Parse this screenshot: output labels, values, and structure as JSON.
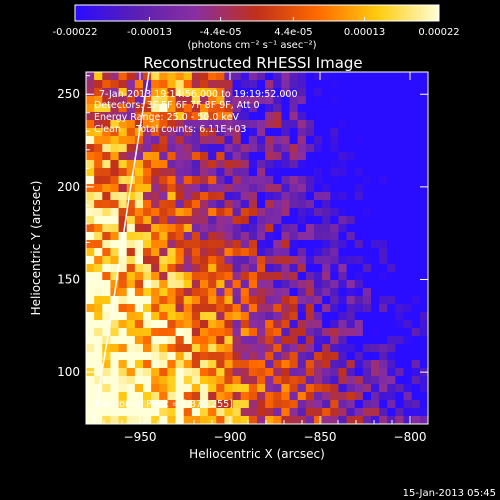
{
  "colorbar": {
    "tick_labels": [
      "-0.00022",
      "-0.00013",
      "-4.4e-05",
      "4.4e-05",
      "0.00013",
      "0.00022"
    ],
    "tick_values": [
      -0.00022,
      -0.00013,
      -4.4e-05,
      4.4e-05,
      0.00013,
      0.00022
    ],
    "range": [
      -0.00022,
      0.00022
    ],
    "units_label": "(photons cm⁻² s⁻¹ asec⁻²)",
    "colors": [
      "#2a0cff",
      "#5a1fb4",
      "#8a2fa0",
      "#c0301a",
      "#ff6a00",
      "#ffcc10",
      "#ffffd8"
    ]
  },
  "chart_data": {
    "type": "heatmap",
    "title": "Reconstructed RHESSI Image",
    "xlabel": "Heliocentric X (arcsec)",
    "ylabel": "Heliocentric Y (arcsec)",
    "xlim": [
      -980,
      -790
    ],
    "ylim": [
      72,
      262
    ],
    "x_ticks": [
      -950,
      -900,
      -850,
      -800
    ],
    "x_tick_labels": [
      "−950",
      "−900",
      "−850",
      "−800"
    ],
    "y_ticks": [
      100,
      150,
      200,
      250
    ],
    "y_tick_labels": [
      "100",
      "150",
      "200",
      "250"
    ],
    "annotations": [
      "7-Jan-2013 19:14:56.000 to 19:19:52.000",
      "Detectors: 3F 5F 6F 7F 8F 9F, Att 0",
      "Energy Range: 25.0 - 50.0 keV",
      "Clean     Total counts: 6.11E+03"
    ],
    "peak_label": "Position of Peak = [-871,255]",
    "peak_position": [
      -871,
      255
    ],
    "limb_curve": [
      [
        -976,
        72
      ],
      [
        -966,
        130
      ],
      [
        -956,
        195
      ],
      [
        -945,
        262
      ]
    ]
  },
  "footer": {
    "timestamp": "15-Jan-2013 05:45"
  }
}
